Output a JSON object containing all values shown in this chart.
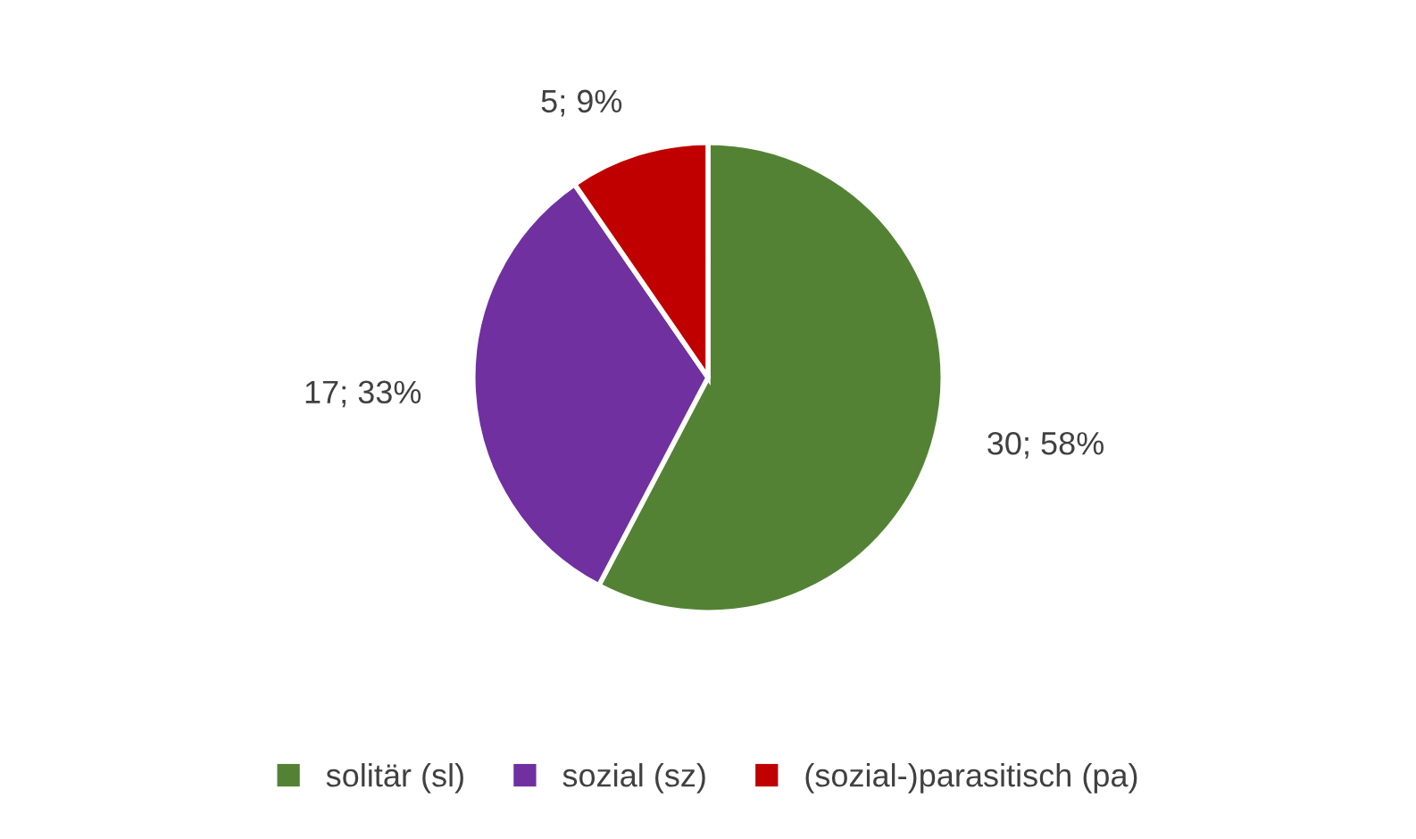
{
  "chart_data": {
    "type": "pie",
    "categories": [
      "solitär (sl)",
      "sozial (sz)",
      "(sozial-)parasitisch (pa)"
    ],
    "values": [
      30,
      17,
      5
    ],
    "colors": [
      "#548235",
      "#7030a0",
      "#c00000"
    ],
    "value_labels": [
      "30; 58%",
      "17; 33%",
      "5; 9%"
    ],
    "legend": "bottom"
  }
}
